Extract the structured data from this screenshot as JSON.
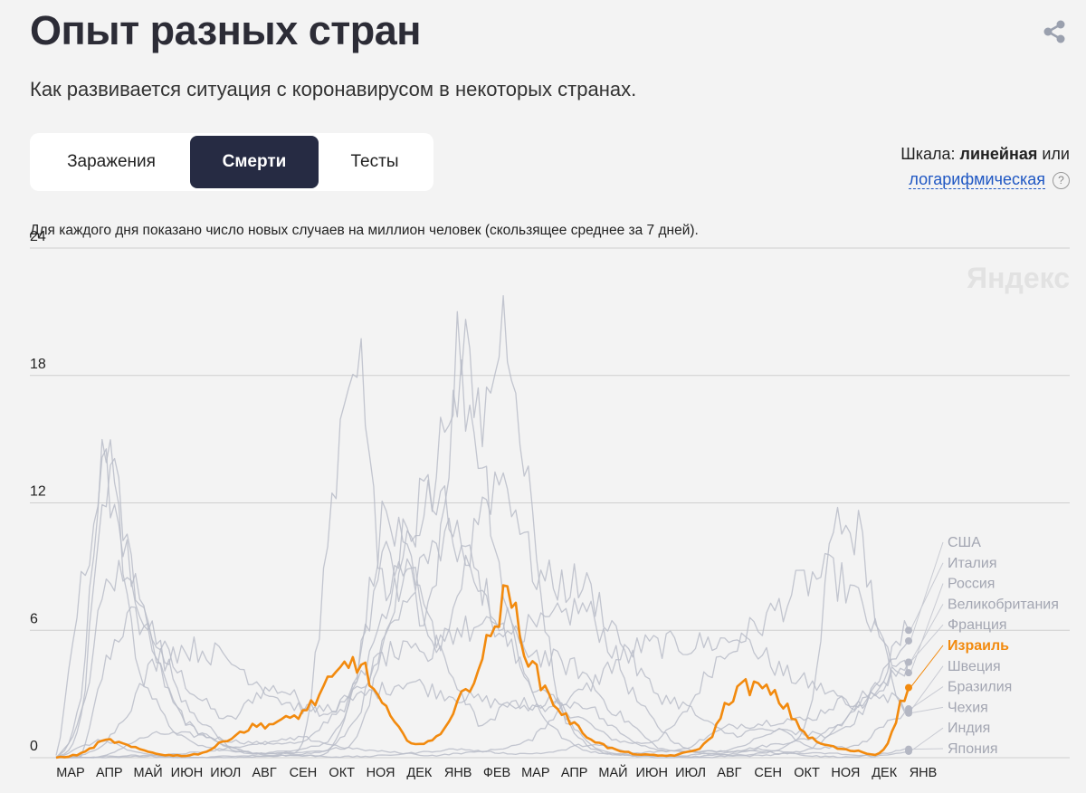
{
  "header": {
    "title": "Опыт разных стран",
    "subtitle": "Как развивается ситуация с коронавирусом в некоторых странах.",
    "share_icon": "share-icon"
  },
  "tabs": [
    {
      "label": "Заражения",
      "active": false
    },
    {
      "label": "Смерти",
      "active": true
    },
    {
      "label": "Тесты",
      "active": false
    }
  ],
  "scale": {
    "prefix": "Шкала:",
    "current": "линейная",
    "or": "или",
    "alternative": "логарифмическая",
    "help": "?"
  },
  "note": "Для каждого дня показано число новых случаев на миллион человек (скользящее среднее за 7 дней).",
  "watermark": "Яндекс",
  "colors": {
    "highlight": "#f28a0e",
    "others": "#b9bcc8",
    "grid": "#cfcfcf"
  },
  "chart_data": {
    "type": "line",
    "title": "",
    "ylim": [
      0,
      24
    ],
    "yticks": [
      0,
      6,
      12,
      18,
      24
    ],
    "x_labels": [
      "МАР",
      "АПР",
      "МАЙ",
      "ИЮН",
      "ИЮЛ",
      "АВГ",
      "СЕН",
      "ОКТ",
      "НОЯ",
      "ДЕК",
      "ЯНВ",
      "ФЕВ",
      "МАР",
      "АПР",
      "МАЙ",
      "ИЮН",
      "ИЮЛ",
      "АВГ",
      "СЕН",
      "ОКТ",
      "НОЯ",
      "ДЕК",
      "ЯНВ"
    ],
    "highlight": "Израиль",
    "series": [
      {
        "name": "США",
        "values": [
          0,
          0.1,
          4.5,
          6.5,
          5.5,
          3.8,
          2.5,
          1.8,
          3.0,
          3.2,
          2.5,
          2.2,
          3.5,
          6.5,
          8.5,
          9.5,
          10.0,
          8.0,
          5.5,
          3.5,
          2.5,
          1.8,
          1.0,
          0.7,
          0.9,
          2.0,
          4.0,
          5.5,
          5.0,
          4.0,
          3.5,
          3.0,
          2.5,
          4.0,
          5.5
        ]
      },
      {
        "name": "Италия",
        "values": [
          0.1,
          8.0,
          13.0,
          8.5,
          4.5,
          2.0,
          1.0,
          0.4,
          0.2,
          0.2,
          0.3,
          0.4,
          1.0,
          5.0,
          10.0,
          12.5,
          10.0,
          7.5,
          6.5,
          6.0,
          6.5,
          7.0,
          5.5,
          3.0,
          1.5,
          0.5,
          0.2,
          0.3,
          0.5,
          0.7,
          0.9,
          1.2,
          2.0,
          4.0,
          6.0
        ]
      },
      {
        "name": "Россия",
        "values": [
          0,
          0,
          0.1,
          0.7,
          1.1,
          1.1,
          1.0,
          0.8,
          0.7,
          0.7,
          0.8,
          2.0,
          2.8,
          3.2,
          3.6,
          3.2,
          2.9,
          2.7,
          2.5,
          2.4,
          2.6,
          3.1,
          4.2,
          5.1,
          5.3,
          5.3,
          5.4,
          5.6,
          6.2,
          7.3,
          8.3,
          8.5,
          7.3,
          5.2,
          4.0
        ]
      },
      {
        "name": "Великобритания",
        "values": [
          0,
          2.0,
          13.0,
          9.0,
          5.0,
          2.0,
          1.0,
          0.5,
          0.2,
          0.2,
          0.2,
          0.5,
          2.0,
          5.0,
          7.0,
          8.0,
          17.0,
          14.0,
          7.0,
          3.0,
          1.2,
          0.4,
          0.2,
          0.2,
          0.3,
          0.4,
          1.0,
          1.5,
          1.6,
          1.8,
          1.8,
          2.5,
          2.8,
          3.3,
          4.5
        ]
      },
      {
        "name": "Франция",
        "values": [
          0,
          3.0,
          15.0,
          6.0,
          2.5,
          1.0,
          0.5,
          0.3,
          0.2,
          0.3,
          0.5,
          1.0,
          4.0,
          11.0,
          9.0,
          6.0,
          6.0,
          6.0,
          5.8,
          5.0,
          4.5,
          4.0,
          2.5,
          1.5,
          0.5,
          0.3,
          0.3,
          0.4,
          0.9,
          1.3,
          1.1,
          1.4,
          2.3,
          3.5,
          4.5
        ]
      },
      {
        "name": "Израиль",
        "values": [
          0,
          0.2,
          0.8,
          0.5,
          0.2,
          0.1,
          0.3,
          1.0,
          1.5,
          1.7,
          2.3,
          3.6,
          4.5,
          2.5,
          0.9,
          0.8,
          2.5,
          4.7,
          7.4,
          4.3,
          2.4,
          1.2,
          0.5,
          0.2,
          0.1,
          0.2,
          0.8,
          3.0,
          3.3,
          2.5,
          1.0,
          0.5,
          0.3,
          0.4,
          3.3
        ]
      },
      {
        "name": "Швеция",
        "values": [
          0,
          2.0,
          8.0,
          8.0,
          5.5,
          3.0,
          1.5,
          0.5,
          0.2,
          0.1,
          0.1,
          0.5,
          4.0,
          9.0,
          9.0,
          5.5,
          3.5,
          1.5,
          2.5,
          2.5,
          2.5,
          0.9,
          0.3,
          0.1,
          0.1,
          0.1,
          0.2,
          0.1,
          0.1,
          0.2,
          0.4,
          1.2,
          2.5,
          3.0,
          2.2
        ]
      },
      {
        "name": "Бразилия",
        "values": [
          0,
          0.1,
          0.8,
          2.5,
          4.6,
          5.1,
          5.0,
          4.5,
          3.6,
          2.7,
          2.3,
          2.4,
          3.1,
          4.7,
          4.9,
          4.9,
          7.7,
          12.0,
          13.0,
          9.0,
          8.2,
          8.1,
          6.6,
          4.5,
          3.0,
          2.5,
          1.6,
          1.1,
          1.3,
          1.2,
          0.5,
          0.5,
          0.6,
          1.5,
          2.3
        ]
      },
      {
        "name": "Чехия",
        "values": [
          0,
          0.5,
          0.8,
          0.3,
          0.1,
          0,
          0,
          0.1,
          0.1,
          0.2,
          1.5,
          12.0,
          19.5,
          8.0,
          11.0,
          12.5,
          19.0,
          16.0,
          20.5,
          11.0,
          3.0,
          0.8,
          0.2,
          0.1,
          0,
          0,
          0,
          0.1,
          0.2,
          0.5,
          2.0,
          10.0,
          10.5,
          5.0,
          2.1
        ]
      },
      {
        "name": "Индия",
        "values": [
          0,
          0,
          0,
          0.05,
          0.1,
          0.2,
          0.3,
          0.5,
          0.6,
          0.8,
          0.9,
          0.6,
          0.4,
          0.3,
          0.2,
          0.1,
          0.2,
          0.3,
          0.5,
          0.9,
          2.2,
          2.6,
          1.6,
          0.8,
          0.4,
          0.3,
          0.3,
          0.3,
          0.3,
          0.2,
          0.2,
          0.2,
          0.1,
          0.1,
          0.3
        ]
      },
      {
        "name": "Япония",
        "values": [
          0,
          0,
          0.05,
          0.1,
          0.05,
          0,
          0,
          0.01,
          0.05,
          0.1,
          0.1,
          0.05,
          0.05,
          0.1,
          0.2,
          0.3,
          0.4,
          0.3,
          0.2,
          0.2,
          0.3,
          0.6,
          0.5,
          0.2,
          0.1,
          0.05,
          0.1,
          0.2,
          0.4,
          0.3,
          0.1,
          0.05,
          0.05,
          0.2,
          0.4
        ]
      }
    ]
  }
}
